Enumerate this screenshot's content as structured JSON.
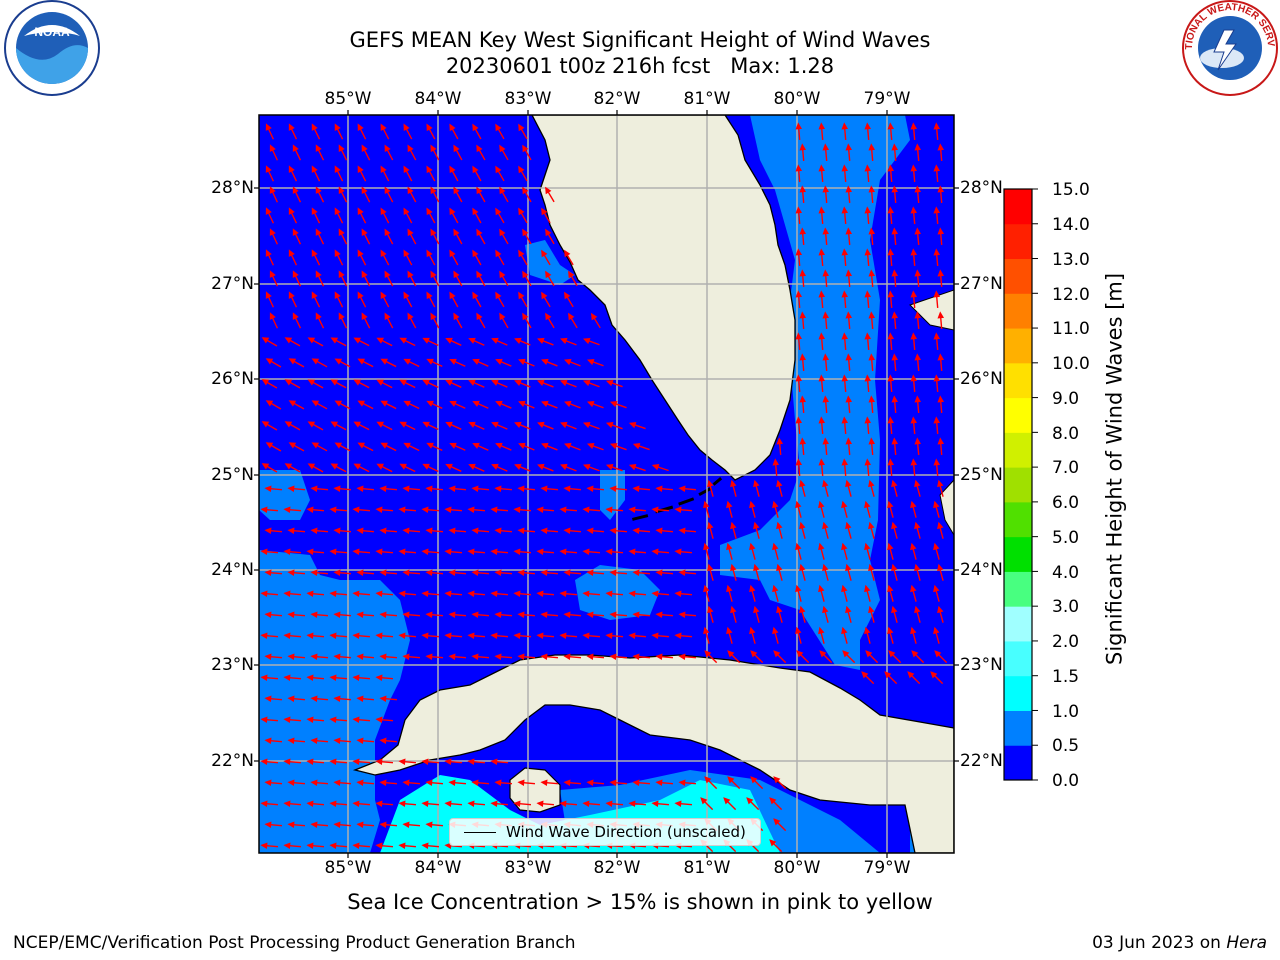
{
  "title": {
    "line1": "GEFS MEAN Key West Significant Height of Wind Waves",
    "line2": "20230601 t00z 216h fcst   Max: 1.28"
  },
  "map": {
    "lon_ticks": [
      "85°W",
      "84°W",
      "83°W",
      "82°W",
      "81°W",
      "80°W",
      "79°W"
    ],
    "lat_ticks": [
      "28°N",
      "27°N",
      "26°N",
      "25°N",
      "24°N",
      "23°N",
      "22°N"
    ],
    "legend_label": "Wind Wave Direction (unscaled)",
    "colors": {
      "ocean_low": "#0000ff",
      "ocean_mid": "#0080ff",
      "ocean_high": "#00ffff",
      "land": "#eeeedd",
      "arrows": "#ff0000",
      "grid": "#b0b0b0"
    }
  },
  "colorbar": {
    "title": "Significant Height of Wind Waves [m]",
    "levels": [
      "15.0",
      "14.0",
      "13.0",
      "12.0",
      "11.0",
      "10.0",
      "9.0",
      "8.0",
      "7.0",
      "6.0",
      "5.0",
      "4.0",
      "3.0",
      "2.0",
      "1.5",
      "1.0",
      "0.5",
      "0.0"
    ],
    "colors": [
      "#0000ff",
      "#0080ff",
      "#00ffff",
      "#48ffff",
      "#a0ffff",
      "#48ff80",
      "#00e000",
      "#50e000",
      "#a0e000",
      "#d0f000",
      "#ffff00",
      "#ffe000",
      "#ffb000",
      "#ff8000",
      "#ff5000",
      "#ff2000",
      "#ff0000"
    ]
  },
  "logos": {
    "left": "NOAA",
    "right": "NATIONAL WEATHER SERVICE"
  },
  "footnote": "Sea Ice Concentration > 15% is shown in pink to yellow",
  "credit_left": "NCEP/EMC/Verification Post Processing Product Generation Branch",
  "credit_right_date": "03 Jun 2023 on ",
  "credit_right_host": "Hera"
}
